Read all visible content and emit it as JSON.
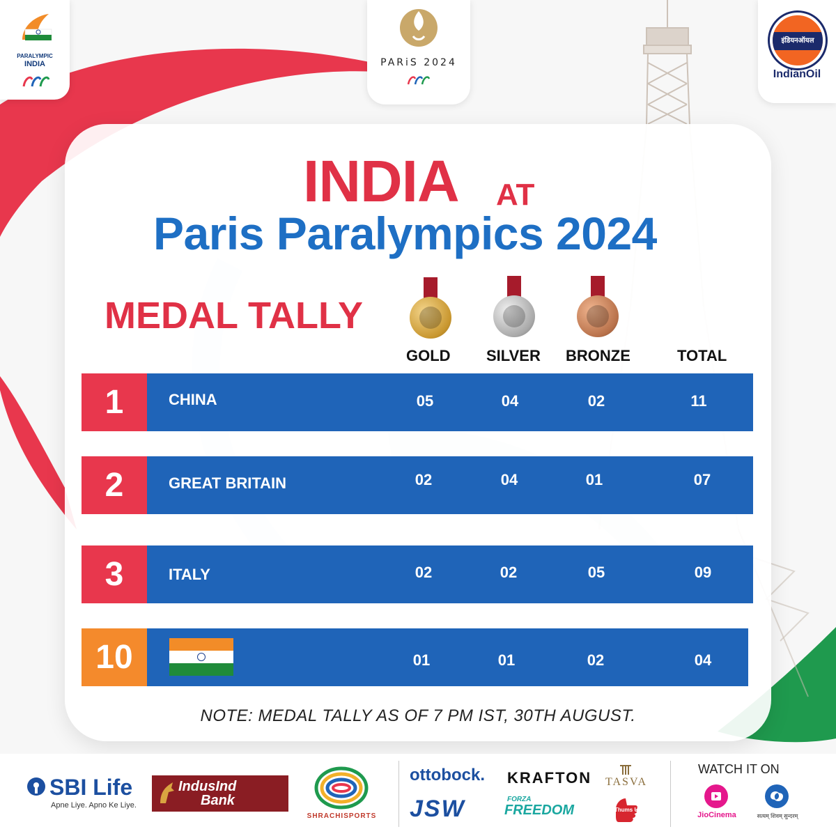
{
  "header": {
    "left_logo": {
      "line1": "PARALYMPIC",
      "line2": "INDIA"
    },
    "center_logo": {
      "text": "PARiS 2024"
    },
    "right_logo": {
      "badge": "इंडियनऑयल",
      "name": "IndianOil"
    }
  },
  "title": {
    "main": "INDIA",
    "at": "AT",
    "sub": "Paris Paralympics 2024"
  },
  "section_label": "MEDAL TALLY",
  "columns": {
    "gold": "GOLD",
    "silver": "SILVER",
    "bronze": "BRONZE",
    "total": "TOTAL"
  },
  "colors": {
    "rank_red": "#e8374d",
    "rank_orange": "#f48a2c",
    "bar_blue": "#1f64b8",
    "title_red": "#e03146",
    "title_blue": "#1e6fc4"
  },
  "rows": [
    {
      "rank": "1",
      "country": "CHINA",
      "gold": "05",
      "silver": "04",
      "bronze": "02",
      "total": "11"
    },
    {
      "rank": "2",
      "country": "GREAT BRITAIN",
      "gold": "02",
      "silver": "04",
      "bronze": "01",
      "total": "07"
    },
    {
      "rank": "3",
      "country": "ITALY",
      "gold": "02",
      "silver": "02",
      "bronze": "05",
      "total": "09"
    },
    {
      "rank": "10",
      "country_flag": "india-flag",
      "gold": "01",
      "silver": "01",
      "bronze": "02",
      "total": "04"
    }
  ],
  "note": "NOTE: MEDAL TALLY AS OF 7 PM IST, 30TH AUGUST.",
  "sponsors": {
    "sbi": {
      "name": "SBI Life",
      "tagline": "Apne Liye. Apno Ke Liye."
    },
    "indusind": {
      "line1": "IndusInd",
      "line2": "Bank"
    },
    "shrachi": "SHRACHISPORTS",
    "ottobock": "ottobock.",
    "jsw": "JSW",
    "krafton": "KRAFTON",
    "forza": {
      "line1": "FORZA",
      "line2": "FREEDOM"
    },
    "tasva": "TASVA",
    "thumsup": "Thums Up",
    "watch_label": "WATCH IT ON",
    "jiocinema": "JioCinema",
    "doordarshan": "सत्यम् शिवम् सुन्दरम्"
  }
}
